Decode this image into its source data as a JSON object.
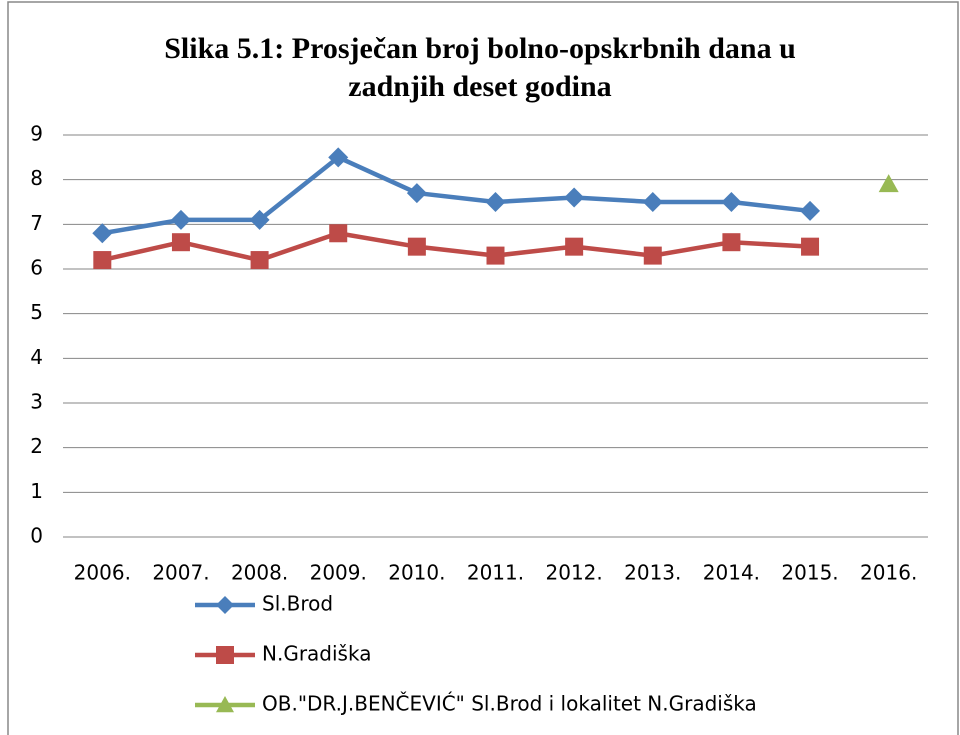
{
  "chart_data": {
    "type": "line",
    "title": "Slika 5.1: Prosječan broj bolno-opskrbnih dana u zadnjih deset godina",
    "categories": [
      "2006.",
      "2007.",
      "2008.",
      "2009.",
      "2010.",
      "2011.",
      "2012.",
      "2013.",
      "2014.",
      "2015.",
      "2016."
    ],
    "series": [
      {
        "name": "Sl.Brod",
        "color": "#4a7ebb",
        "marker": "diamond",
        "values": [
          6.8,
          7.1,
          7.1,
          8.5,
          7.7,
          7.5,
          7.6,
          7.5,
          7.5,
          7.3,
          null
        ]
      },
      {
        "name": "N.Gradiška",
        "color": "#be4b48",
        "marker": "square",
        "values": [
          6.2,
          6.6,
          6.2,
          6.8,
          6.5,
          6.3,
          6.5,
          6.3,
          6.6,
          6.5,
          null
        ]
      },
      {
        "name": "OB.\"DR.J.BENČEVIĆ\" Sl.Brod i lokalitet N.Gradiška",
        "color": "#98b954",
        "marker": "triangle",
        "values": [
          null,
          null,
          null,
          null,
          null,
          null,
          null,
          null,
          null,
          null,
          7.9
        ]
      }
    ],
    "ylim": [
      0,
      9
    ],
    "yticks": [
      0,
      1,
      2,
      3,
      4,
      5,
      6,
      7,
      8,
      9
    ],
    "grid": true,
    "legend": "bottom"
  }
}
